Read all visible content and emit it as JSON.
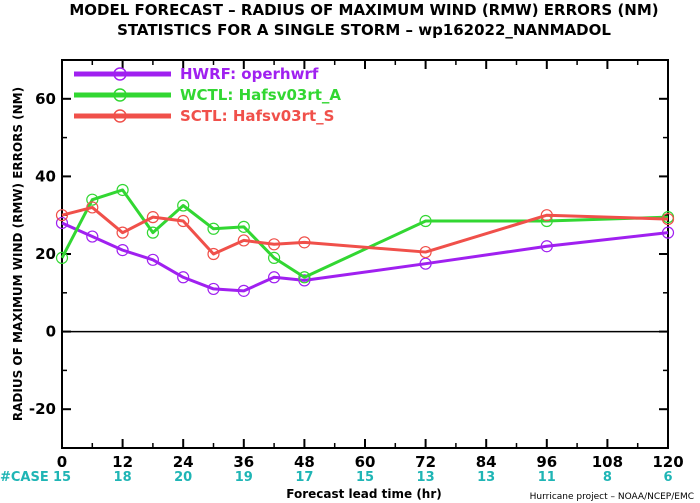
{
  "title_line1": "MODEL FORECAST – RADIUS OF MAXIMUM WIND (RMW) ERRORS (NM)",
  "title_line2": "STATISTICS FOR A SINGLE STORM – wp162022_NANMADOL",
  "case_label": "#CASE",
  "credit": "Hurricane project – NOAA/NCEP/EMC",
  "chart_data": {
    "type": "line",
    "xlabel": "Forecast lead time (hr)",
    "ylabel": "RADIUS OF MAXIMUM WIND (RMW) ERRORS (NM)",
    "xlim": [
      0,
      120
    ],
    "ylim": [
      -30,
      70
    ],
    "xticks": [
      0,
      12,
      24,
      36,
      48,
      60,
      72,
      84,
      96,
      108,
      120
    ],
    "yticks": [
      -20,
      0,
      20,
      40,
      60
    ],
    "zero_line": true,
    "grid": false,
    "legend_position": "top-left",
    "series": [
      {
        "name": "HWRF: operhwrf",
        "color": "#a020f0",
        "x": [
          0,
          6,
          12,
          18,
          24,
          30,
          36,
          42,
          48,
          72,
          96,
          120
        ],
        "values": [
          28,
          24.5,
          21,
          18.5,
          14,
          11,
          10.5,
          14,
          13.2,
          17.5,
          22,
          25.5
        ]
      },
      {
        "name": "WCTL: Hafsv03rt_A",
        "color": "#32d732",
        "x": [
          0,
          6,
          12,
          18,
          24,
          30,
          36,
          42,
          48,
          72,
          96,
          120
        ],
        "values": [
          19,
          34,
          36.5,
          25.5,
          32.5,
          26.5,
          27,
          19,
          14,
          28.5,
          28.5,
          29.5
        ]
      },
      {
        "name": "SCTL: Hafsv03rt_S",
        "color": "#f0504a",
        "x": [
          0,
          6,
          12,
          18,
          24,
          30,
          36,
          42,
          48,
          72,
          96,
          120
        ],
        "values": [
          30,
          32,
          25.5,
          29.5,
          28.5,
          20,
          23.5,
          22.5,
          23,
          20.5,
          30,
          29
        ]
      }
    ],
    "cases": {
      "x": [
        0,
        12,
        24,
        36,
        48,
        60,
        72,
        84,
        96,
        108,
        120
      ],
      "values": [
        "15",
        "18",
        "20",
        "19",
        "17",
        "15",
        "13",
        "13",
        "11",
        "8",
        "6"
      ]
    }
  }
}
